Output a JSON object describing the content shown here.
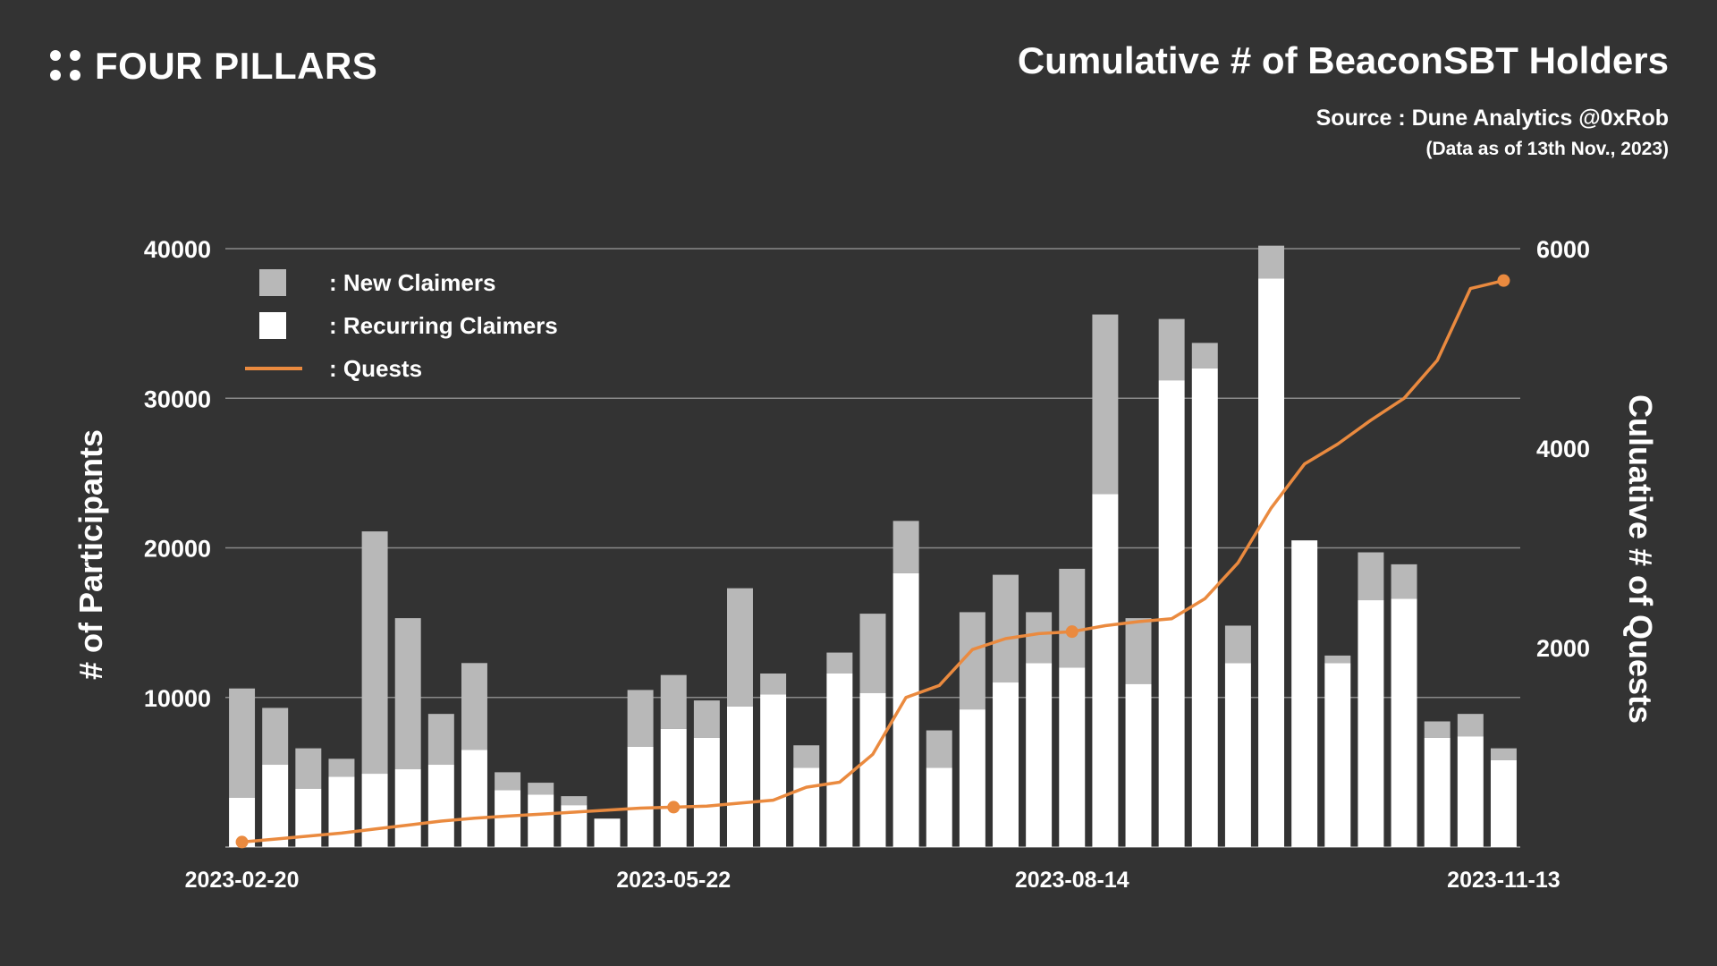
{
  "brand": {
    "name": "FOUR PILLARS",
    "logo_icon": "four-dots-icon"
  },
  "header": {
    "title": "Cumulative # of BeaconSBT Holders",
    "source": "Source : Dune Analytics @0xRob",
    "as_of": "(Data as of 13th Nov., 2023)"
  },
  "colors": {
    "background": "#333333",
    "new_claimers": "#b8b8b8",
    "recurring_claimers": "#ffffff",
    "quests": "#ea8a3f",
    "grid": "#8a8a8a"
  },
  "chart_data": {
    "type": "bar",
    "stacked": true,
    "title": "Cumulative # of BeaconSBT Holders",
    "ylabel": "# of Participants",
    "y2label": "Culuative # of Quests",
    "ylim": [
      0,
      40000
    ],
    "y2lim": [
      0,
      6000
    ],
    "yticks": [
      10000,
      20000,
      30000,
      40000
    ],
    "y2ticks": [
      2000,
      4000,
      6000
    ],
    "xtick_labels": [
      {
        "index": 0,
        "label": "2023-02-20"
      },
      {
        "index": 13,
        "label": "2023-05-22"
      },
      {
        "index": 25,
        "label": "2023-08-14"
      },
      {
        "index": 38,
        "label": "2023-11-13"
      }
    ],
    "grid": true,
    "legend": [
      {
        "key": "new",
        "label": ": New Claimers",
        "icon": "gray-square-icon"
      },
      {
        "key": "recurring",
        "label": ": Recurring Claimers",
        "icon": "white-square-icon"
      },
      {
        "key": "quests",
        "label": ": Quests",
        "icon": "orange-line-icon"
      }
    ],
    "legend_position": "top-left",
    "series": [
      {
        "name": "Recurring Claimers",
        "values": [
          3300,
          5500,
          3900,
          4700,
          4900,
          5200,
          5500,
          6500,
          3800,
          3500,
          2800,
          1900,
          6700,
          7900,
          7300,
          9400,
          10200,
          5300,
          11600,
          10300,
          18300,
          5300,
          9200,
          11000,
          12300,
          12000,
          23600,
          10900,
          31200,
          32000,
          12300,
          38000,
          20500,
          12300,
          16500,
          16600,
          7300,
          7400,
          5800
        ]
      },
      {
        "name": "New Claimers",
        "values": [
          7300,
          3800,
          2700,
          1200,
          16200,
          10100,
          3400,
          5800,
          1200,
          800,
          600,
          0,
          3800,
          3600,
          2500,
          7900,
          1400,
          1500,
          1400,
          5300,
          3500,
          2500,
          6500,
          7200,
          3400,
          6600,
          12000,
          4400,
          4100,
          1700,
          2500,
          2200,
          0,
          500,
          3200,
          2300,
          1100,
          1500,
          800
        ]
      },
      {
        "name": "Quests",
        "axis": "right",
        "values": [
          50,
          80,
          110,
          140,
          180,
          220,
          260,
          290,
          310,
          330,
          350,
          370,
          390,
          400,
          410,
          440,
          470,
          600,
          650,
          930,
          1500,
          1620,
          1980,
          2090,
          2140,
          2160,
          2220,
          2260,
          2290,
          2490,
          2850,
          3400,
          3840,
          4040,
          4280,
          4500,
          4880,
          5600,
          5680
        ]
      }
    ],
    "quest_markers": [
      0,
      13,
      25,
      38
    ]
  }
}
